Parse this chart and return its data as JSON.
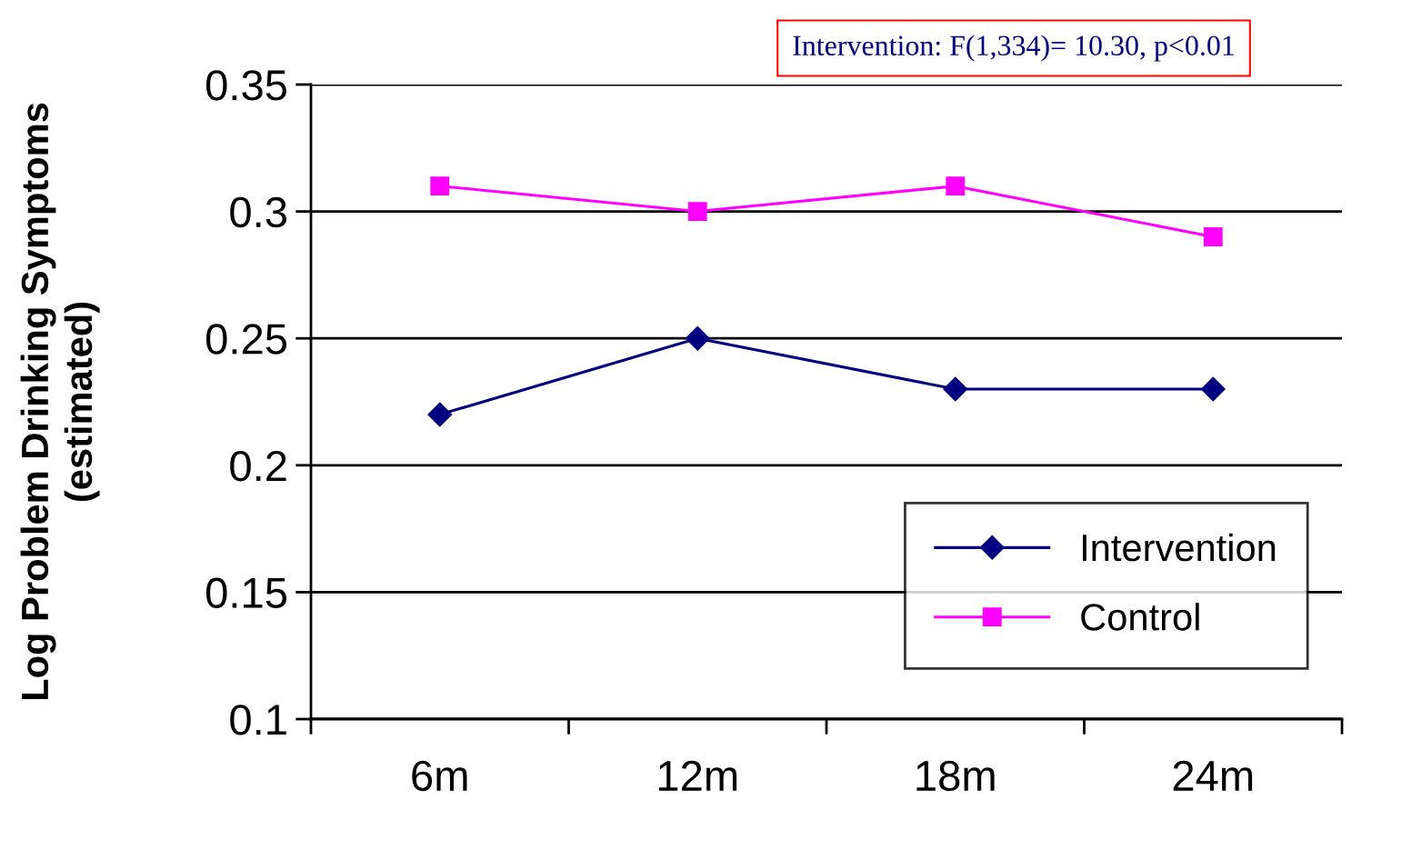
{
  "chart_data": {
    "type": "line",
    "categories": [
      "6m",
      "12m",
      "18m",
      "24m"
    ],
    "series": [
      {
        "name": "Intervention",
        "color": "#000080",
        "values": [
          0.22,
          0.25,
          0.23,
          0.23
        ],
        "marker": "diamond"
      },
      {
        "name": "Control",
        "color": "#ff00ff",
        "values": [
          0.31,
          0.3,
          0.31,
          0.29
        ],
        "marker": "square"
      }
    ],
    "ylabel": "Log Problem Drinking Symptoms\n(estimated)",
    "ylim": [
      0.1,
      0.35
    ],
    "yticks": [
      0.1,
      0.15,
      0.2,
      0.25,
      0.3,
      0.35
    ],
    "grid": "y",
    "legend": "bottom right",
    "line_style": "solid",
    "annotations": [
      "Intervention: F(1,334)= 10.30, p<0.01"
    ]
  }
}
